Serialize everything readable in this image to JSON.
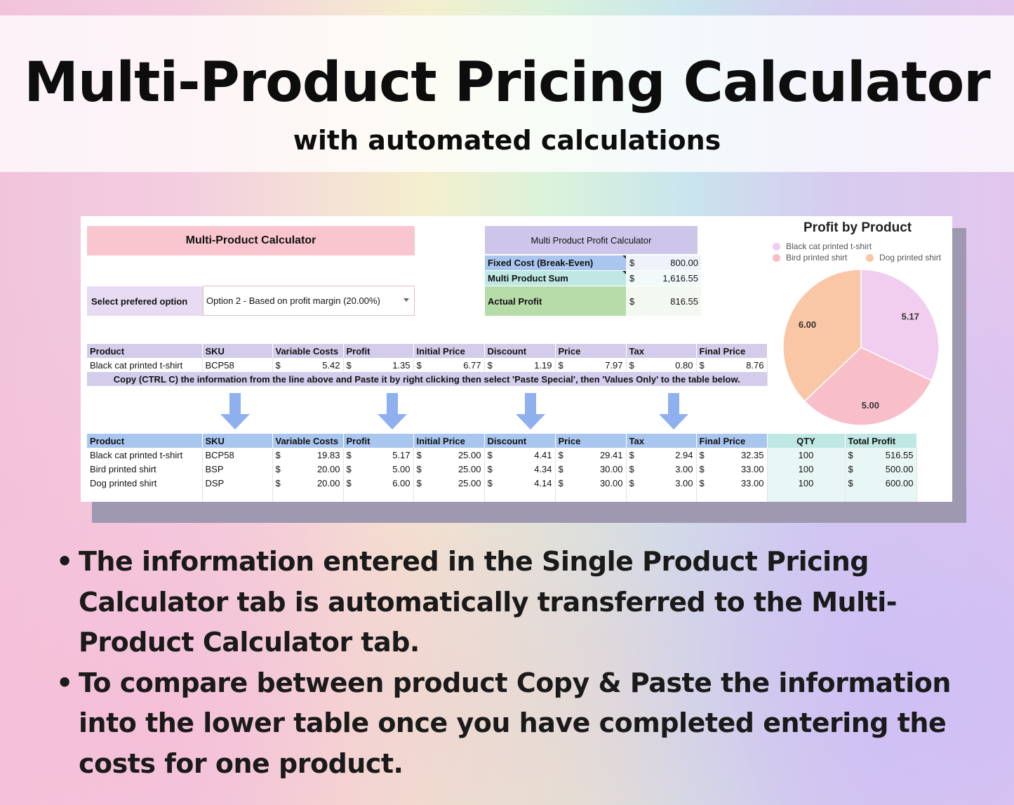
{
  "header": {
    "title": "Multi-Product Pricing Calculator",
    "subtitle": "with automated calculations"
  },
  "sheet": {
    "calculator_title": "Multi-Product Calculator",
    "option_label": "Select prefered option",
    "option_value": "Option 2 - Based on profit margin (20.00%)",
    "profit_calc": {
      "title": "Multi Product Profit Calculator",
      "rows": [
        {
          "label": "Fixed Cost (Break-Even)",
          "currency": "$",
          "value": "800.00",
          "color": "#a9c6ef",
          "valbg": "#eef3fb"
        },
        {
          "label": "Multi Product Sum",
          "currency": "$",
          "value": "1,616.55",
          "color": "#bfe8e4",
          "valbg": "#f1faf9"
        },
        {
          "label": "Actual Profit",
          "currency": "$",
          "value": "816.55",
          "color": "#b7dcaa",
          "valbg": "#f3f9f0"
        }
      ]
    },
    "columns": [
      "Product",
      "SKU",
      "Variable Costs",
      "Profit",
      "Initial Price",
      "Discount",
      "Price",
      "Tax",
      "Final Price"
    ],
    "extra_columns": [
      "QTY",
      "Total Profit"
    ],
    "single_row": {
      "product": "Black cat printed t-shirt",
      "sku": "BCP58",
      "values": [
        "5.42",
        "1.35",
        "6.77",
        "1.19",
        "7.97",
        "0.80",
        "8.76"
      ]
    },
    "currency": "$",
    "copy_note": "Copy (CTRL C) the information from the line above and Paste it by right clicking then select 'Paste Special', then 'Values Only' to the table below.",
    "multi_rows": [
      {
        "product": "Black cat printed t-shirt",
        "sku": "BCP58",
        "values": [
          "19.83",
          "5.17",
          "25.00",
          "4.41",
          "29.41",
          "2.94",
          "32.35"
        ],
        "qty": "100",
        "total_profit": "516.55"
      },
      {
        "product": "Bird printed shirt",
        "sku": "BSP",
        "values": [
          "20.00",
          "5.00",
          "25.00",
          "4.34",
          "30.00",
          "3.00",
          "33.00"
        ],
        "qty": "100",
        "total_profit": "500.00"
      },
      {
        "product": "Dog printed shirt",
        "sku": "DSP",
        "values": [
          "20.00",
          "6.00",
          "25.00",
          "4.14",
          "30.00",
          "3.00",
          "33.00"
        ],
        "qty": "100",
        "total_profit": "600.00"
      }
    ]
  },
  "chart_data": {
    "type": "pie",
    "title": "Profit by Product",
    "legend_position": "top",
    "categories": [
      "Black cat printed t-shirt",
      "Bird printed shirt",
      "Dog printed shirt"
    ],
    "values": [
      5.17,
      5.0,
      6.0
    ],
    "labels": [
      "5.17",
      "5.00",
      "6.00"
    ],
    "colors": [
      "#f1cdef",
      "#f8bfcb",
      "#f9c6a6"
    ]
  },
  "bullets": [
    "The information entered in the Single Product Pricing Calculator tab is automatically transferred to the Multi-Product Calculator tab.",
    "To compare between product Copy & Paste the information into the lower table once you have completed entering the costs for one product."
  ]
}
